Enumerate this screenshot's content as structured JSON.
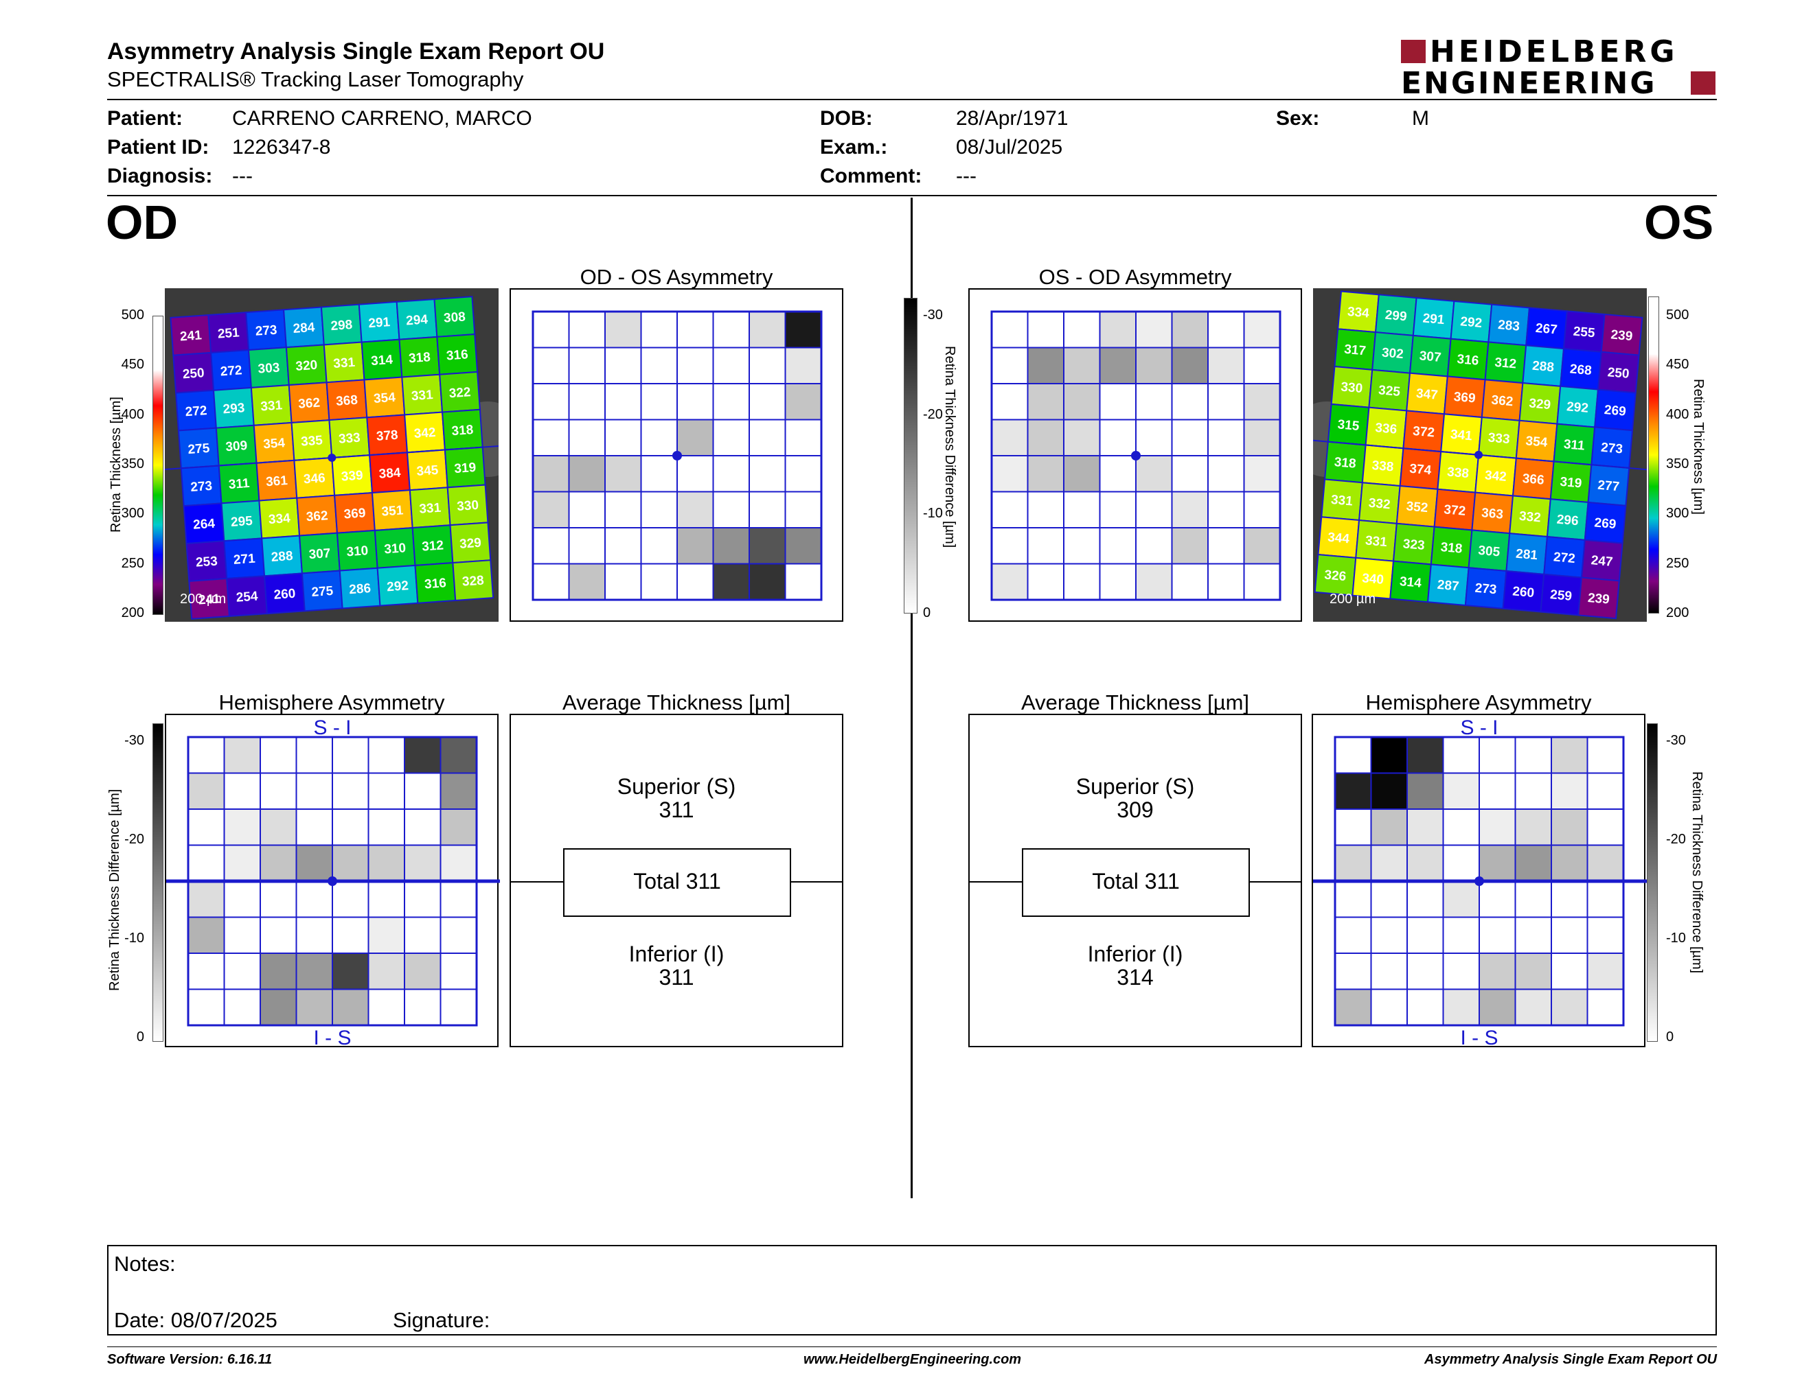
{
  "header": {
    "title": "Asymmetry Analysis Single Exam Report OU",
    "subtitle": "SPECTRALIS® Tracking Laser Tomography",
    "logo_line1": "HEIDELBERG",
    "logo_line2": "ENGINEERING"
  },
  "patient": {
    "patient_label": "Patient:",
    "patient_value": "CARRENO CARRENO, MARCO",
    "id_label": "Patient ID:",
    "id_value": "1226347-8",
    "diagnosis_label": "Diagnosis:",
    "diagnosis_value": "---",
    "dob_label": "DOB:",
    "dob_value": "28/Apr/1971",
    "exam_label": "Exam.:",
    "exam_value": "08/Jul/2025",
    "comment_label": "Comment:",
    "comment_value": "---",
    "sex_label": "Sex:",
    "sex_value": "M"
  },
  "od": {
    "label": "OD",
    "asym_title": "OD - OS Asymmetry",
    "hemi_title": "Hemisphere Asymmetry",
    "avg_title": "Average Thickness [µm]",
    "superior_label": "Superior (S)",
    "superior_value": "311",
    "total_label": "Total 311",
    "inferior_label": "Inferior (I)",
    "inferior_value": "311",
    "scale_label": "200 µm",
    "grid": [
      [
        241,
        251,
        273,
        284,
        298,
        291,
        294,
        308
      ],
      [
        250,
        272,
        303,
        320,
        331,
        314,
        318,
        316
      ],
      [
        272,
        293,
        331,
        362,
        368,
        354,
        331,
        322
      ],
      [
        275,
        309,
        354,
        335,
        333,
        378,
        342,
        318
      ],
      [
        273,
        311,
        361,
        346,
        339,
        384,
        345,
        319
      ],
      [
        264,
        295,
        334,
        362,
        369,
        351,
        331,
        330
      ],
      [
        253,
        271,
        288,
        307,
        310,
        310,
        312,
        329
      ],
      [
        241,
        254,
        260,
        275,
        286,
        292,
        316,
        328
      ]
    ],
    "asym": [
      [
        0,
        0,
        4,
        0,
        0,
        0,
        4,
        27
      ],
      [
        0,
        0,
        0,
        0,
        0,
        0,
        0,
        3
      ],
      [
        0,
        0,
        0,
        0,
        0,
        0,
        0,
        7
      ],
      [
        0,
        0,
        0,
        0,
        8,
        0,
        0,
        0
      ],
      [
        6,
        9,
        5,
        0,
        0,
        0,
        0,
        0
      ],
      [
        5,
        0,
        0,
        0,
        4,
        0,
        0,
        0
      ],
      [
        0,
        0,
        0,
        0,
        9,
        13,
        20,
        14
      ],
      [
        0,
        7,
        0,
        0,
        0,
        23,
        24,
        0
      ]
    ],
    "hemi": [
      [
        0,
        4,
        0,
        0,
        0,
        0,
        23,
        19
      ],
      [
        5,
        0,
        0,
        0,
        0,
        0,
        0,
        13
      ],
      [
        0,
        2,
        4,
        0,
        0,
        0,
        0,
        7
      ],
      [
        0,
        2,
        7,
        12,
        7,
        6,
        4,
        2
      ],
      [
        4,
        0,
        0,
        0,
        0,
        0,
        0,
        0
      ],
      [
        9,
        0,
        0,
        0,
        0,
        2,
        0,
        0
      ],
      [
        0,
        0,
        13,
        12,
        22,
        4,
        6,
        0
      ],
      [
        0,
        0,
        13,
        8,
        9,
        0,
        0,
        0
      ]
    ],
    "hemi_top": "S - I",
    "hemi_bottom": "I - S"
  },
  "os": {
    "label": "OS",
    "asym_title": "OS - OD Asymmetry",
    "hemi_title": "Hemisphere Asymmetry",
    "avg_title": "Average Thickness [µm]",
    "superior_label": "Superior (S)",
    "superior_value": "309",
    "total_label": "Total 311",
    "inferior_label": "Inferior (I)",
    "inferior_value": "314",
    "scale_label": "200 µm",
    "grid": [
      [
        334,
        299,
        291,
        292,
        283,
        267,
        255,
        239
      ],
      [
        317,
        302,
        307,
        316,
        312,
        288,
        268,
        250
      ],
      [
        330,
        325,
        347,
        369,
        362,
        329,
        292,
        269
      ],
      [
        315,
        336,
        372,
        341,
        333,
        354,
        311,
        273
      ],
      [
        318,
        338,
        374,
        338,
        342,
        366,
        319,
        277
      ],
      [
        331,
        332,
        352,
        372,
        363,
        332,
        296,
        269
      ],
      [
        344,
        331,
        323,
        318,
        305,
        281,
        272,
        247
      ],
      [
        326,
        340,
        314,
        287,
        273,
        260,
        259,
        239
      ]
    ],
    "asym": [
      [
        0,
        0,
        0,
        4,
        2,
        6,
        0,
        2
      ],
      [
        0,
        13,
        6,
        12,
        7,
        13,
        3,
        0
      ],
      [
        0,
        6,
        6,
        0,
        0,
        0,
        0,
        4
      ],
      [
        3,
        6,
        4,
        0,
        0,
        0,
        0,
        4
      ],
      [
        2,
        6,
        9,
        0,
        4,
        0,
        0,
        2
      ],
      [
        0,
        0,
        0,
        0,
        0,
        3,
        0,
        0
      ],
      [
        0,
        0,
        0,
        0,
        0,
        6,
        0,
        6
      ],
      [
        3,
        0,
        0,
        0,
        3,
        0,
        0,
        0
      ]
    ],
    "hemi": [
      [
        0,
        30,
        24,
        0,
        0,
        0,
        5,
        0
      ],
      [
        26,
        29,
        15,
        2,
        0,
        0,
        2,
        0
      ],
      [
        0,
        7,
        3,
        0,
        2,
        4,
        6,
        0
      ],
      [
        5,
        3,
        4,
        0,
        9,
        12,
        8,
        5
      ],
      [
        0,
        0,
        0,
        3,
        0,
        0,
        0,
        0
      ],
      [
        0,
        0,
        0,
        0,
        0,
        0,
        0,
        0
      ],
      [
        0,
        0,
        0,
        0,
        6,
        6,
        0,
        3
      ],
      [
        8,
        0,
        0,
        3,
        9,
        3,
        4,
        0
      ]
    ],
    "hemi_top": "S - I",
    "hemi_bottom": "I - S"
  },
  "axes": {
    "thickness_label": "Retina Thickness [µm]",
    "thickness_ticks": [
      "500",
      "450",
      "400",
      "350",
      "300",
      "250",
      "200"
    ],
    "diff_label": "Retina Thickness Difference [µm]",
    "diff_ticks": [
      "-30",
      "-20",
      "-10",
      "0"
    ]
  },
  "notes": {
    "notes_label": "Notes:",
    "date_label": "Date: 08/07/2025",
    "signature_label": "Signature:"
  },
  "footer": {
    "software": "Software Version: 6.16.11",
    "website": "www.HeidelbergEngineering.com",
    "report": "Asymmetry Analysis Single Exam Report OU"
  },
  "colors": {
    "grid_blue": "#1a1acc",
    "logo_red": "#9b1b30"
  }
}
